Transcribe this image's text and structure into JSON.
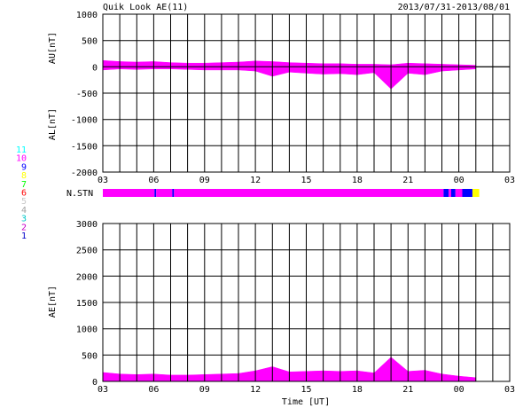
{
  "header": {
    "title": "Quik Look AE(11)",
    "date_range": "2013/07/31-2013/08/01"
  },
  "station_legend": {
    "items": [
      {
        "label": "11",
        "color": "#00ffff"
      },
      {
        "label": "10",
        "color": "#ff00ff"
      },
      {
        "label": "9",
        "color": "#0000ff"
      },
      {
        "label": "8",
        "color": "#ffff00"
      },
      {
        "label": "7",
        "color": "#00ff00"
      },
      {
        "label": "6",
        "color": "#ff0000"
      },
      {
        "label": "5",
        "color": "#c8c8c8"
      },
      {
        "label": "4",
        "color": "#a0a0a0"
      },
      {
        "label": "3",
        "color": "#00c8c8"
      },
      {
        "label": "2",
        "color": "#c800c8"
      },
      {
        "label": "1",
        "color": "#0000c8"
      }
    ]
  },
  "nstn_label": "N.STN",
  "chart_data": [
    {
      "type": "area",
      "ylabel_top": "AU[nT]",
      "ylabel_bottom": "AL[nT]",
      "ylim": [
        -2000,
        1000
      ],
      "yticks": [
        "1000",
        "500",
        "0",
        "-500",
        "-1000",
        "-1500",
        "-2000"
      ],
      "xticks": [
        "03",
        "06",
        "09",
        "12",
        "15",
        "18",
        "21",
        "00",
        "03"
      ],
      "x_hours": [
        3,
        4,
        5,
        6,
        7,
        8,
        9,
        10,
        11,
        12,
        13,
        14,
        15,
        16,
        17,
        18,
        19,
        20,
        21,
        22,
        23,
        24,
        25
      ],
      "au": [
        120,
        100,
        90,
        100,
        80,
        70,
        70,
        80,
        90,
        110,
        100,
        80,
        70,
        60,
        60,
        50,
        50,
        40,
        70,
        60,
        50,
        40,
        30
      ],
      "al": [
        -60,
        -40,
        -50,
        -40,
        -40,
        -50,
        -60,
        -60,
        -60,
        -80,
        -180,
        -100,
        -120,
        -140,
        -130,
        -150,
        -110,
        -420,
        -120,
        -150,
        -80,
        -60,
        -40
      ]
    },
    {
      "type": "area",
      "ylabel": "AE[nT]",
      "xlabel": "Time [UT]",
      "ylim": [
        0,
        3000
      ],
      "yticks": [
        "3000",
        "2500",
        "2000",
        "1500",
        "1000",
        "500",
        "0"
      ],
      "xticks": [
        "03",
        "06",
        "09",
        "12",
        "15",
        "18",
        "21",
        "00",
        "03"
      ],
      "x_hours": [
        3,
        4,
        5,
        6,
        7,
        8,
        9,
        10,
        11,
        12,
        13,
        14,
        15,
        16,
        17,
        18,
        19,
        20,
        21,
        22,
        23,
        24,
        25
      ],
      "ae": [
        170,
        140,
        130,
        140,
        120,
        120,
        130,
        140,
        150,
        200,
        280,
        180,
        190,
        200,
        190,
        200,
        160,
        460,
        190,
        210,
        140,
        100,
        70
      ]
    }
  ],
  "nstn_segments": [
    {
      "from": 3.0,
      "to": 6.05,
      "color": "#ff00ff"
    },
    {
      "from": 6.05,
      "to": 6.15,
      "color": "#0000ff"
    },
    {
      "from": 6.15,
      "to": 7.1,
      "color": "#ff00ff"
    },
    {
      "from": 7.1,
      "to": 7.2,
      "color": "#0000ff"
    },
    {
      "from": 7.2,
      "to": 23.1,
      "color": "#ff00ff"
    },
    {
      "from": 23.1,
      "to": 23.4,
      "color": "#0000ff"
    },
    {
      "from": 23.4,
      "to": 23.55,
      "color": "#ff00ff"
    },
    {
      "from": 23.55,
      "to": 23.8,
      "color": "#0000ff"
    },
    {
      "from": 23.8,
      "to": 24.2,
      "color": "#ff00ff"
    },
    {
      "from": 24.2,
      "to": 24.8,
      "color": "#0000ff"
    },
    {
      "from": 24.8,
      "to": 25.2,
      "color": "#ffff00"
    }
  ],
  "colors": {
    "fill": "#ff00ff",
    "low_coverage": "#0000ff",
    "no_data": "#ffff00",
    "grid": "#000000"
  }
}
